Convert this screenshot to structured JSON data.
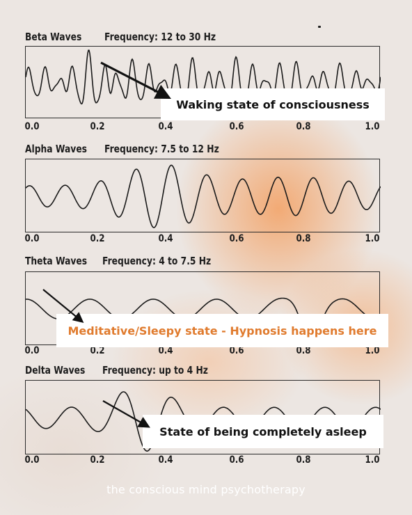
{
  "panels": [
    {
      "id": "beta",
      "title": "Beta Waves",
      "frequency": "Frequency: 12 to 30 Hz",
      "x_ticks": [
        "0.0",
        "0.2",
        "0.4",
        "0.6",
        "0.8",
        "1.0"
      ],
      "callout": "Waking state of consciousness"
    },
    {
      "id": "alpha",
      "title": "Alpha Waves",
      "frequency": "Frequency: 7.5 to 12 Hz",
      "x_ticks": [
        "0.0",
        "0.2",
        "0.4",
        "0.6",
        "0.8",
        "1.0"
      ]
    },
    {
      "id": "theta",
      "title": "Theta Waves",
      "frequency": "Frequency: 4 to 7.5 Hz",
      "x_ticks": [
        "0.0",
        "0.2",
        "0.4",
        "0.6",
        "0.8",
        "1.0"
      ],
      "callout": "Meditative/Sleepy state - Hypnosis happens here"
    },
    {
      "id": "delta",
      "title": "Delta Waves",
      "frequency": "Frequency: up to 4 Hz",
      "x_ticks": [
        "0.0",
        "0.2",
        "0.4",
        "0.6",
        "0.8",
        "1.0"
      ],
      "callout": "State of being completely asleep"
    }
  ],
  "footer": "the conscious mind psychotherapy",
  "colors": {
    "wave": "#1a1a1a",
    "callout_text_dark": "#111111",
    "callout_text_orange": "#e07b2e",
    "footer_text": "#ffffff"
  }
}
